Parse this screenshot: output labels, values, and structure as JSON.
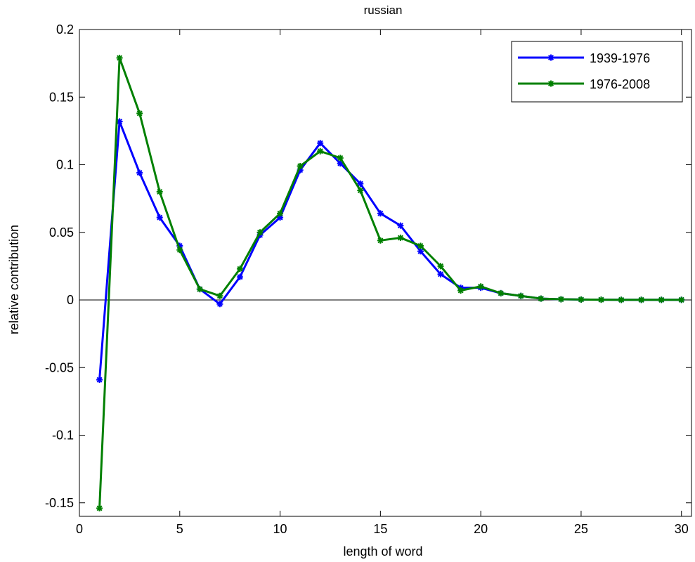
{
  "chart_data": {
    "type": "line",
    "title": "russian",
    "xlabel": "length of word",
    "ylabel": "relative contribution",
    "xlim": [
      0,
      30.5
    ],
    "ylim": [
      -0.16,
      0.2
    ],
    "x_ticks": [
      0,
      5,
      10,
      15,
      20,
      25,
      30
    ],
    "x_tick_labels": [
      "0",
      "5",
      "10",
      "15",
      "20",
      "25",
      "30"
    ],
    "y_ticks": [
      -0.15,
      -0.1,
      -0.05,
      0,
      0.05,
      0.1,
      0.15,
      0.2
    ],
    "y_tick_labels": [
      "-0.15",
      "-0.1",
      "-0.05",
      "0",
      "0.05",
      "0.1",
      "0.15",
      "0.2"
    ],
    "grid": false,
    "zero_line": true,
    "legend_position": "top-right",
    "x": [
      1,
      2,
      3,
      4,
      5,
      6,
      7,
      8,
      9,
      10,
      11,
      12,
      13,
      14,
      15,
      16,
      17,
      18,
      19,
      20,
      21,
      22,
      23,
      24,
      25,
      26,
      27,
      28,
      29,
      30
    ],
    "series": [
      {
        "name": "1939-1976",
        "color": "#0000ff",
        "values": [
          -0.059,
          0.132,
          0.094,
          0.061,
          0.04,
          0.008,
          -0.003,
          0.017,
          0.048,
          0.061,
          0.096,
          0.116,
          0.101,
          0.086,
          0.064,
          0.055,
          0.036,
          0.019,
          0.009,
          0.009,
          0.005,
          0.003,
          0.001,
          0.0005,
          0.0003,
          0.0002,
          0.0001,
          0.0001,
          0.0001,
          0.0001
        ]
      },
      {
        "name": "1976-2008",
        "color": "#008000",
        "values": [
          -0.154,
          0.179,
          0.138,
          0.08,
          0.037,
          0.008,
          0.003,
          0.023,
          0.05,
          0.064,
          0.099,
          0.11,
          0.105,
          0.081,
          0.044,
          0.046,
          0.04,
          0.025,
          0.007,
          0.01,
          0.005,
          0.003,
          0.001,
          0.0005,
          0.0003,
          0.0002,
          0.0001,
          0.0001,
          0.0001,
          0.0001
        ]
      }
    ]
  }
}
